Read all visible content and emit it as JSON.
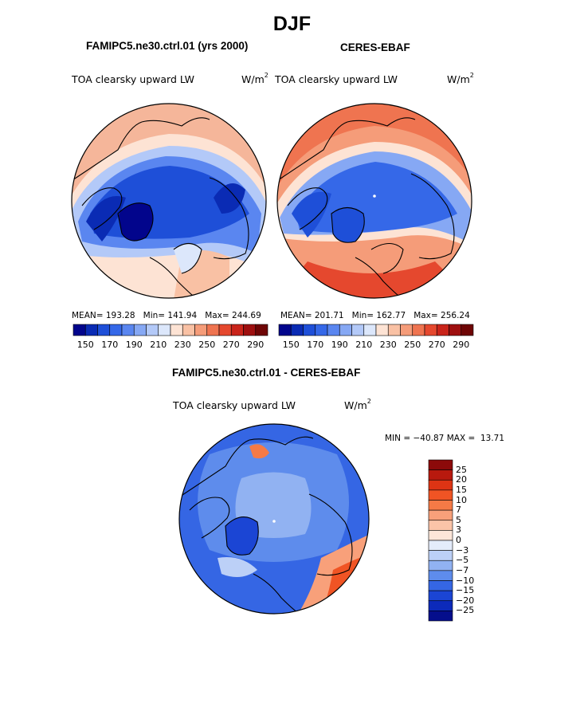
{
  "title": "DJF",
  "panels": [
    {
      "title": "FAMIPC5.ne30.ctrl.01 (yrs 2000)",
      "variable": "TOA clearsky upward LW",
      "units_base": "W/m",
      "units_exp": "2",
      "stats": {
        "mean": "193.28",
        "min": "141.94",
        "max": "244.69"
      },
      "stats_labels": {
        "mean": "MEAN=",
        "min": "Min=",
        "max": "Max="
      }
    },
    {
      "title": "CERES-EBAF",
      "variable": "TOA clearsky upward LW",
      "units_base": "W/m",
      "units_exp": "2",
      "stats": {
        "mean": "201.71",
        "min": "162.77",
        "max": "256.24"
      },
      "stats_labels": {
        "mean": "MEAN=",
        "min": "Min=",
        "max": "Max="
      }
    },
    {
      "title": "FAMIPC5.ne30.ctrl.01 - CERES-EBAF",
      "variable": "TOA clearsky upward LW",
      "units_base": "W/m",
      "units_exp": "2",
      "stats": {
        "min": "−40.87",
        "max": "13.71"
      },
      "stats_labels": {
        "min": "MIN =",
        "max": "MAX ="
      }
    }
  ],
  "chart_data": {
    "type": "heatmap",
    "projection": "polar stereographic (north polar)",
    "colorbar_abs": {
      "orientation": "horizontal",
      "levels": [
        150,
        160,
        170,
        180,
        190,
        200,
        210,
        220,
        230,
        240,
        250,
        260,
        270,
        280,
        290
      ],
      "tick_labels": [
        "150",
        "170",
        "190",
        "210",
        "230",
        "250",
        "270",
        "290"
      ],
      "colors": [
        "#02058c",
        "#0a2bb4",
        "#1e4fd8",
        "#3568e8",
        "#5a86f0",
        "#86a8f4",
        "#b3c9f8",
        "#dce7fb",
        "#fde3d4",
        "#f9c1a4",
        "#f59c79",
        "#ef7450",
        "#e5482e",
        "#c9241a",
        "#9e0f0f",
        "#6e0505"
      ]
    },
    "colorbar_diff": {
      "orientation": "vertical",
      "levels": [
        -25,
        -20,
        -15,
        -10,
        -7,
        -5,
        -3,
        0,
        3,
        5,
        7,
        10,
        15,
        20,
        25
      ],
      "tick_labels": [
        "25",
        "20",
        "15",
        "10",
        "7",
        "5",
        "3",
        "0",
        "−3",
        "−5",
        "−7",
        "−10",
        "−15",
        "−20",
        "−25"
      ],
      "colors_top_to_bottom": [
        "#8c0a0a",
        "#b8190e",
        "#dd3414",
        "#f05424",
        "#f57a46",
        "#f8a07a",
        "#fbc4a8",
        "#fde6d9",
        "#e4ecfb",
        "#bcd0f7",
        "#91b2f2",
        "#5e8cec",
        "#3566e4",
        "#1b45d4",
        "#0c2aba",
        "#050e8c"
      ]
    },
    "fields": [
      {
        "panel": 0,
        "description": "model field",
        "stats": {
          "mean": 193.28,
          "min": 141.94,
          "max": 244.69
        }
      },
      {
        "panel": 1,
        "description": "observed field",
        "stats": {
          "mean": 201.71,
          "min": 162.77,
          "max": 256.24
        }
      },
      {
        "panel": 2,
        "description": "difference field",
        "stats": {
          "min": -40.87,
          "max": 13.71
        }
      }
    ]
  }
}
